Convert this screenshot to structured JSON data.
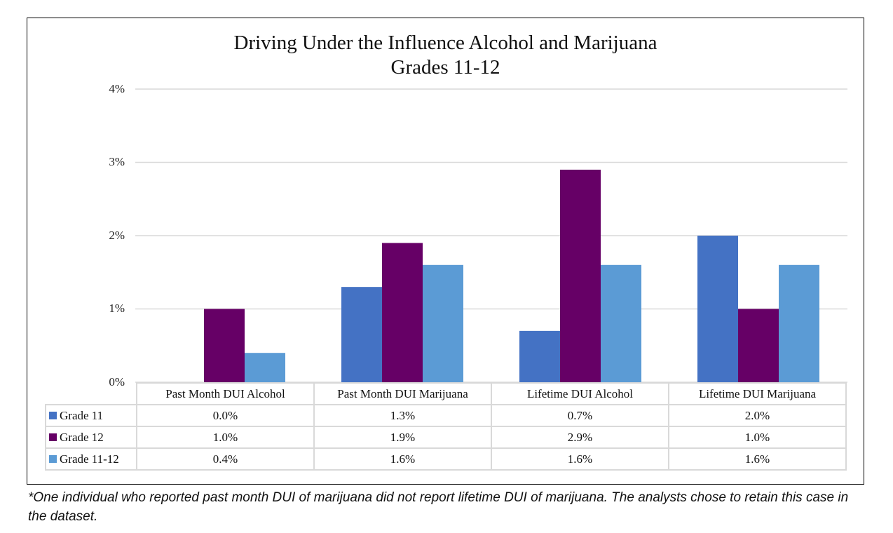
{
  "chart_data": {
    "type": "bar",
    "title": "Driving Under the Influence Alcohol and Marijuana",
    "subtitle": "Grades 11-12",
    "categories": [
      "Past Month DUI Alcohol",
      "Past Month DUI Marijuana",
      "Lifetime DUI Alcohol",
      "Lifetime DUI Marijuana"
    ],
    "series": [
      {
        "name": "Grade 11",
        "color": "#4472C4",
        "values": [
          0.0,
          1.3,
          0.7,
          2.0
        ],
        "labels": [
          "0.0%",
          "1.3%",
          "0.7%",
          "2.0%"
        ]
      },
      {
        "name": "Grade 12",
        "color": "#660066",
        "values": [
          1.0,
          1.9,
          2.9,
          1.0
        ],
        "labels": [
          "1.0%",
          "1.9%",
          "2.9%",
          "1.0%"
        ]
      },
      {
        "name": "Grade 11-12",
        "color": "#5B9BD5",
        "values": [
          0.4,
          1.6,
          1.6,
          1.6
        ],
        "labels": [
          "0.4%",
          "1.6%",
          "1.6%",
          "1.6%"
        ]
      }
    ],
    "ylim": [
      0,
      4
    ],
    "yticks": [
      "0%",
      "1%",
      "2%",
      "3%",
      "4%"
    ],
    "grid": true,
    "legend": "data-table"
  },
  "footnote": "*One individual who reported past month DUI of marijuana did not report lifetime DUI of marijuana. The analysts chose to retain this case in the dataset."
}
